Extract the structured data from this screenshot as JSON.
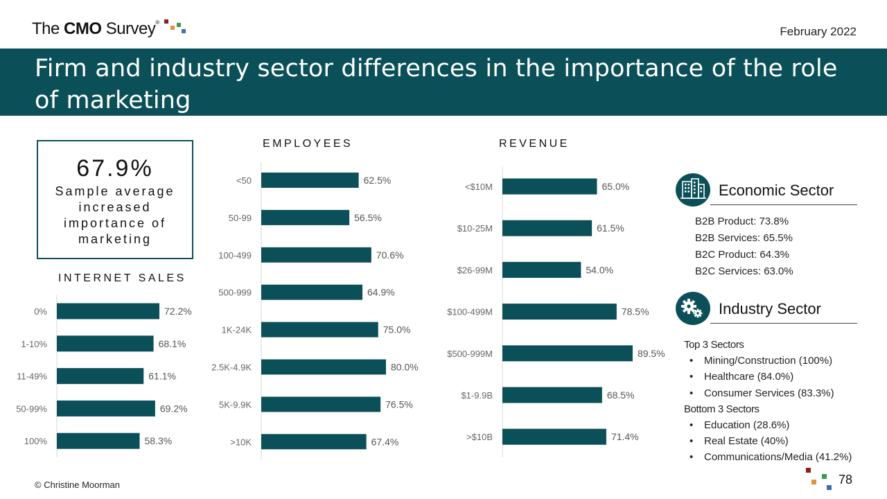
{
  "header": {
    "logo": "The CMO Survey",
    "logo_reg": "®",
    "date": "February 2022",
    "title": "Firm and industry sector differences in the importance of the role of marketing"
  },
  "colors": {
    "banner": "#0b5059",
    "bar": "#0b5059",
    "logo_squares": [
      "#8b1d1d",
      "#e0913a",
      "#3a9a4a",
      "#3a6fb5"
    ]
  },
  "summary": {
    "value": "67.9%",
    "label": "Sample average increased importance of marketing"
  },
  "chart_data": [
    {
      "type": "bar",
      "orientation": "horizontal",
      "title": "INTERNET SALES",
      "categories": [
        "0%",
        "1-10%",
        "11-49%",
        "50-99%",
        "100%"
      ],
      "values": [
        72.2,
        68.1,
        61.1,
        69.2,
        58.3
      ],
      "value_labels": [
        "72.2%",
        "68.1%",
        "61.1%",
        "69.2%",
        "58.3%"
      ],
      "xlim": [
        0,
        100
      ],
      "unit": "%"
    },
    {
      "type": "bar",
      "orientation": "horizontal",
      "title": "EMPLOYEES",
      "categories": [
        "<50",
        "50-99",
        "100-499",
        "500-999",
        "1K-24K",
        "2.5K-4.9K",
        "5K-9.9K",
        ">10K"
      ],
      "values": [
        62.5,
        56.5,
        70.6,
        64.9,
        75.0,
        80.0,
        76.5,
        67.4
      ],
      "value_labels": [
        "62.5%",
        "56.5%",
        "70.6%",
        "64.9%",
        "75.0%",
        "80.0%",
        "76.5%",
        "67.4%"
      ],
      "xlim": [
        0,
        100
      ],
      "unit": "%"
    },
    {
      "type": "bar",
      "orientation": "horizontal",
      "title": "REVENUE",
      "categories": [
        "<$10M",
        "$10-25M",
        "$26-99M",
        "$100-499M",
        "$500-999M",
        "$1-9.9B",
        ">$10B"
      ],
      "values": [
        65.0,
        61.5,
        54.0,
        78.5,
        89.5,
        68.5,
        71.4
      ],
      "value_labels": [
        "65.0%",
        "61.5%",
        "54.0%",
        "78.5%",
        "89.5%",
        "68.5%",
        "71.4%"
      ],
      "xlim": [
        0,
        100
      ],
      "unit": "%"
    }
  ],
  "economic_sector": {
    "title": "Economic Sector",
    "icon": "buildings-icon",
    "items": [
      "B2B Product: 73.8%",
      "B2B Services: 65.5%",
      "B2C Product: 64.3%",
      "B2C Services: 63.0%"
    ]
  },
  "industry_sector": {
    "title": "Industry Sector",
    "icon": "gears-icon",
    "top_header": "Top 3 Sectors",
    "top": [
      "Mining/Construction (100%)",
      "Healthcare (84.0%)",
      "Consumer Services (83.3%)"
    ],
    "bottom_header": "Bottom 3 Sectors",
    "bottom": [
      "Education (28.6%)",
      "Real Estate (40%)",
      "Communications/Media (41.2%)"
    ]
  },
  "footer": {
    "copyright": "© Christine Moorman",
    "page_number": "78"
  }
}
